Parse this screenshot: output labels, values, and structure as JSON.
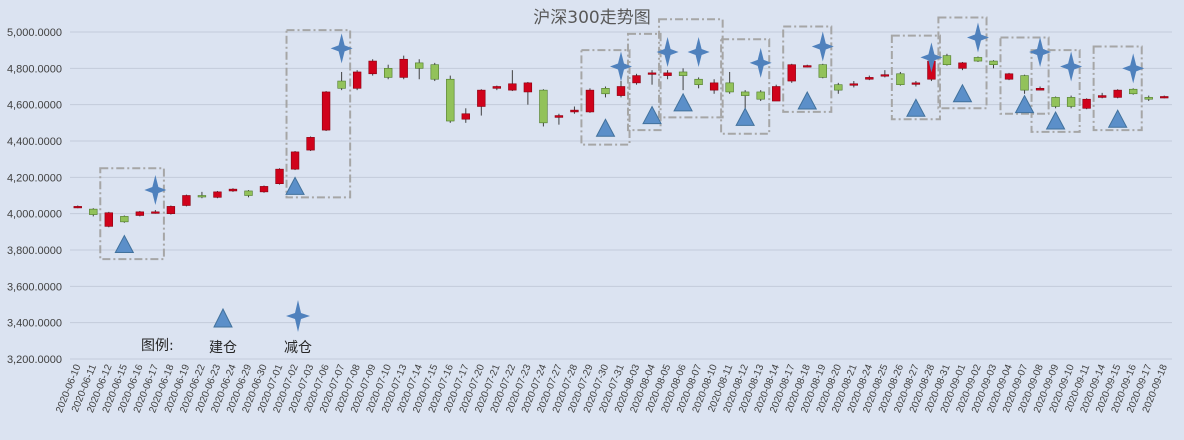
{
  "chart_data": {
    "type": "candlestick",
    "title": "沪深300走势图",
    "ylim": [
      3200,
      5000
    ],
    "y_ticks": [
      "3,200.0000",
      "3,400.0000",
      "3,600.0000",
      "3,800.0000",
      "4,000.0000",
      "4,200.0000",
      "4,400.0000",
      "4,600.0000",
      "4,800.0000",
      "5,000.0000"
    ],
    "y_tick_values": [
      3200,
      3400,
      3600,
      3800,
      4000,
      4200,
      4400,
      4600,
      4800,
      5000
    ],
    "grid": true,
    "colors": {
      "up": "#d0021b",
      "down": "#92c25a",
      "buy": "#5b8fc9",
      "sell": "#4f81bd",
      "box": "#a6a6a6"
    },
    "dates": [
      "2020-06-10",
      "2020-06-11",
      "2020-06-12",
      "2020-06-15",
      "2020-06-16",
      "2020-06-17",
      "2020-06-18",
      "2020-06-19",
      "2020-06-22",
      "2020-06-23",
      "2020-06-24",
      "2020-06-29",
      "2020-06-30",
      "2020-07-01",
      "2020-07-02",
      "2020-07-03",
      "2020-07-06",
      "2020-07-07",
      "2020-07-08",
      "2020-07-09",
      "2020-07-10",
      "2020-07-13",
      "2020-07-14",
      "2020-07-15",
      "2020-07-16",
      "2020-07-17",
      "2020-07-20",
      "2020-07-21",
      "2020-07-22",
      "2020-07-23",
      "2020-07-24",
      "2020-07-27",
      "2020-07-28",
      "2020-07-29",
      "2020-07-30",
      "2020-07-31",
      "2020-08-03",
      "2020-08-04",
      "2020-08-05",
      "2020-08-06",
      "2020-08-07",
      "2020-08-10",
      "2020-08-11",
      "2020-08-12",
      "2020-08-13",
      "2020-08-14",
      "2020-08-17",
      "2020-08-18",
      "2020-08-19",
      "2020-08-20",
      "2020-08-21",
      "2020-08-24",
      "2020-08-25",
      "2020-08-26",
      "2020-08-27",
      "2020-08-28",
      "2020-08-31",
      "2020-09-01",
      "2020-09-02",
      "2020-09-03",
      "2020-09-04",
      "2020-09-07",
      "2020-09-08",
      "2020-09-09",
      "2020-09-10",
      "2020-09-11",
      "2020-09-14",
      "2020-09-15",
      "2020-09-16",
      "2020-09-17",
      "2020-09-18"
    ],
    "candles": [
      {
        "o": 4035,
        "c": 4040,
        "h": 4045,
        "l": 4030
      },
      {
        "o": 4025,
        "c": 3995,
        "h": 4030,
        "l": 3985
      },
      {
        "o": 3930,
        "c": 4005,
        "h": 4010,
        "l": 3925
      },
      {
        "o": 3985,
        "c": 3955,
        "h": 3990,
        "l": 3950
      },
      {
        "o": 3990,
        "c": 4010,
        "h": 4015,
        "l": 3985
      },
      {
        "o": 4005,
        "c": 4010,
        "h": 4020,
        "l": 4000
      },
      {
        "o": 4000,
        "c": 4040,
        "h": 4045,
        "l": 3995
      },
      {
        "o": 4045,
        "c": 4100,
        "h": 4105,
        "l": 4040
      },
      {
        "o": 4100,
        "c": 4095,
        "h": 4120,
        "l": 4085
      },
      {
        "o": 4090,
        "c": 4120,
        "h": 4125,
        "l": 4085
      },
      {
        "o": 4125,
        "c": 4135,
        "h": 4140,
        "l": 4120
      },
      {
        "o": 4125,
        "c": 4100,
        "h": 4130,
        "l": 4090
      },
      {
        "o": 4120,
        "c": 4150,
        "h": 4155,
        "l": 4115
      },
      {
        "o": 4165,
        "c": 4245,
        "h": 4250,
        "l": 4160
      },
      {
        "o": 4245,
        "c": 4340,
        "h": 4345,
        "l": 4240
      },
      {
        "o": 4350,
        "c": 4420,
        "h": 4425,
        "l": 4345
      },
      {
        "o": 4460,
        "c": 4670,
        "h": 4675,
        "l": 4455
      },
      {
        "o": 4730,
        "c": 4690,
        "h": 4780,
        "l": 4680
      },
      {
        "o": 4690,
        "c": 4780,
        "h": 4790,
        "l": 4680
      },
      {
        "o": 4770,
        "c": 4840,
        "h": 4850,
        "l": 4760
      },
      {
        "o": 4800,
        "c": 4750,
        "h": 4820,
        "l": 4740
      },
      {
        "o": 4750,
        "c": 4850,
        "h": 4870,
        "l": 4740
      },
      {
        "o": 4830,
        "c": 4800,
        "h": 4850,
        "l": 4740
      },
      {
        "o": 4820,
        "c": 4740,
        "h": 4830,
        "l": 4730
      },
      {
        "o": 4740,
        "c": 4510,
        "h": 4760,
        "l": 4500
      },
      {
        "o": 4520,
        "c": 4550,
        "h": 4580,
        "l": 4500
      },
      {
        "o": 4590,
        "c": 4680,
        "h": 4685,
        "l": 4540
      },
      {
        "o": 4690,
        "c": 4700,
        "h": 4705,
        "l": 4680
      },
      {
        "o": 4680,
        "c": 4715,
        "h": 4790,
        "l": 4675
      },
      {
        "o": 4670,
        "c": 4720,
        "h": 4725,
        "l": 4600
      },
      {
        "o": 4680,
        "c": 4500,
        "h": 4685,
        "l": 4480
      },
      {
        "o": 4530,
        "c": 4540,
        "h": 4550,
        "l": 4490
      },
      {
        "o": 4560,
        "c": 4570,
        "h": 4590,
        "l": 4550
      },
      {
        "o": 4560,
        "c": 4680,
        "h": 4690,
        "l": 4555
      },
      {
        "o": 4690,
        "c": 4660,
        "h": 4700,
        "l": 4640
      },
      {
        "o": 4650,
        "c": 4700,
        "h": 4730,
        "l": 4640
      },
      {
        "o": 4720,
        "c": 4760,
        "h": 4770,
        "l": 4710
      },
      {
        "o": 4770,
        "c": 4775,
        "h": 4790,
        "l": 4710
      },
      {
        "o": 4760,
        "c": 4775,
        "h": 4790,
        "l": 4740
      },
      {
        "o": 4780,
        "c": 4760,
        "h": 4800,
        "l": 4680
      },
      {
        "o": 4740,
        "c": 4710,
        "h": 4750,
        "l": 4690
      },
      {
        "o": 4680,
        "c": 4720,
        "h": 4740,
        "l": 4660
      },
      {
        "o": 4720,
        "c": 4670,
        "h": 4780,
        "l": 4660
      },
      {
        "o": 4670,
        "c": 4650,
        "h": 4680,
        "l": 4570
      },
      {
        "o": 4670,
        "c": 4630,
        "h": 4680,
        "l": 4620
      },
      {
        "o": 4620,
        "c": 4700,
        "h": 4710,
        "l": 4620
      },
      {
        "o": 4730,
        "c": 4820,
        "h": 4825,
        "l": 4720
      },
      {
        "o": 4810,
        "c": 4815,
        "h": 4820,
        "l": 4805
      },
      {
        "o": 4820,
        "c": 4750,
        "h": 4825,
        "l": 4745
      },
      {
        "o": 4710,
        "c": 4680,
        "h": 4720,
        "l": 4660
      },
      {
        "o": 4710,
        "c": 4715,
        "h": 4730,
        "l": 4695
      },
      {
        "o": 4740,
        "c": 4750,
        "h": 4760,
        "l": 4735
      },
      {
        "o": 4760,
        "c": 4765,
        "h": 4790,
        "l": 4750
      },
      {
        "o": 4770,
        "c": 4710,
        "h": 4780,
        "l": 4705
      },
      {
        "o": 4715,
        "c": 4720,
        "h": 4730,
        "l": 4700
      },
      {
        "o": 4740,
        "c": 4840,
        "h": 4850,
        "l": 4730
      },
      {
        "o": 4870,
        "c": 4820,
        "h": 4880,
        "l": 4815
      },
      {
        "o": 4800,
        "c": 4830,
        "h": 4835,
        "l": 4790
      },
      {
        "o": 4860,
        "c": 4840,
        "h": 4865,
        "l": 4835
      },
      {
        "o": 4840,
        "c": 4820,
        "h": 4845,
        "l": 4800
      },
      {
        "o": 4740,
        "c": 4770,
        "h": 4775,
        "l": 4735
      },
      {
        "o": 4760,
        "c": 4680,
        "h": 4765,
        "l": 4660
      },
      {
        "o": 4680,
        "c": 4690,
        "h": 4700,
        "l": 4680
      },
      {
        "o": 4640,
        "c": 4590,
        "h": 4645,
        "l": 4580
      },
      {
        "o": 4640,
        "c": 4590,
        "h": 4650,
        "l": 4580
      },
      {
        "o": 4580,
        "c": 4630,
        "h": 4635,
        "l": 4575
      },
      {
        "o": 4640,
        "c": 4650,
        "h": 4665,
        "l": 4635
      },
      {
        "o": 4640,
        "c": 4680,
        "h": 4685,
        "l": 4635
      },
      {
        "o": 4685,
        "c": 4660,
        "h": 4690,
        "l": 4655
      },
      {
        "o": 4640,
        "c": 4630,
        "h": 4650,
        "l": 4620
      },
      {
        "o": 4640,
        "c": 4645,
        "h": 4650,
        "l": 4635
      }
    ],
    "buy_marks": [
      {
        "i": 3,
        "value": 3830
      },
      {
        "i": 14,
        "value": 4150
      },
      {
        "i": 34,
        "value": 4470
      },
      {
        "i": 37,
        "value": 4540
      },
      {
        "i": 39,
        "value": 4610
      },
      {
        "i": 43,
        "value": 4530
      },
      {
        "i": 47,
        "value": 4620
      },
      {
        "i": 54,
        "value": 4580
      },
      {
        "i": 57,
        "value": 4660
      },
      {
        "i": 61,
        "value": 4600
      },
      {
        "i": 63,
        "value": 4510
      },
      {
        "i": 67,
        "value": 4520
      }
    ],
    "sell_marks": [
      {
        "i": 5,
        "value": 4130
      },
      {
        "i": 17,
        "value": 4910
      },
      {
        "i": 35,
        "value": 4810
      },
      {
        "i": 38,
        "value": 4890
      },
      {
        "i": 40,
        "value": 4890
      },
      {
        "i": 44,
        "value": 4830
      },
      {
        "i": 48,
        "value": 4920
      },
      {
        "i": 55,
        "value": 4860
      },
      {
        "i": 58,
        "value": 4970
      },
      {
        "i": 62,
        "value": 4890
      },
      {
        "i": 64,
        "value": 4810
      },
      {
        "i": 68,
        "value": 4800
      }
    ],
    "boxes": [
      {
        "i0": 2,
        "i1": 5,
        "top": 4250,
        "bottom": 3750
      },
      {
        "i0": 14,
        "i1": 17,
        "top": 5010,
        "bottom": 4090
      },
      {
        "i0": 33,
        "i1": 35,
        "top": 4900,
        "bottom": 4380
      },
      {
        "i0": 36,
        "i1": 37,
        "top": 4990,
        "bottom": 4460
      },
      {
        "i0": 38,
        "i1": 41,
        "top": 5070,
        "bottom": 4530
      },
      {
        "i0": 42,
        "i1": 44,
        "top": 4960,
        "bottom": 4440
      },
      {
        "i0": 46,
        "i1": 48,
        "top": 5030,
        "bottom": 4560
      },
      {
        "i0": 53,
        "i1": 55,
        "top": 4980,
        "bottom": 4520
      },
      {
        "i0": 56,
        "i1": 58,
        "top": 5080,
        "bottom": 4580
      },
      {
        "i0": 60,
        "i1": 62,
        "top": 4970,
        "bottom": 4550
      },
      {
        "i0": 62,
        "i1": 64,
        "top": 4900,
        "bottom": 4450
      },
      {
        "i0": 66,
        "i1": 68,
        "top": 4920,
        "bottom": 4460
      }
    ],
    "legend": {
      "label": "图例:",
      "buy": "建仓",
      "sell": "减仓"
    }
  }
}
